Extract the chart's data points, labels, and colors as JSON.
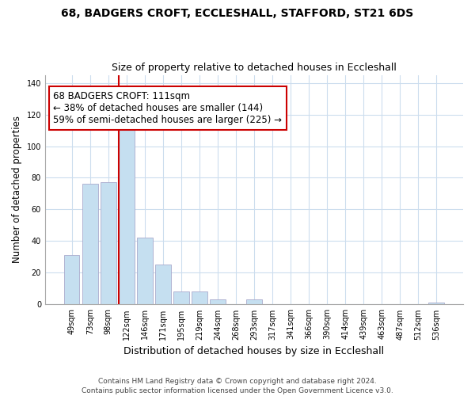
{
  "title": "68, BADGERS CROFT, ECCLESHALL, STAFFORD, ST21 6DS",
  "subtitle": "Size of property relative to detached houses in Eccleshall",
  "xlabel": "Distribution of detached houses by size in Eccleshall",
  "ylabel": "Number of detached properties",
  "bar_labels": [
    "49sqm",
    "73sqm",
    "98sqm",
    "122sqm",
    "146sqm",
    "171sqm",
    "195sqm",
    "219sqm",
    "244sqm",
    "268sqm",
    "293sqm",
    "317sqm",
    "341sqm",
    "366sqm",
    "390sqm",
    "414sqm",
    "439sqm",
    "463sqm",
    "487sqm",
    "512sqm",
    "536sqm"
  ],
  "bar_heights": [
    31,
    76,
    77,
    111,
    42,
    25,
    8,
    8,
    3,
    0,
    3,
    0,
    0,
    0,
    0,
    0,
    0,
    0,
    0,
    0,
    1
  ],
  "bar_color": "#c5dff0",
  "bar_edge_color": "#aaaacc",
  "background_color": "#ffffff",
  "grid_color": "#ccddee",
  "vline_color": "#cc0000",
  "annotation_line1": "68 BADGERS CROFT: 111sqm",
  "annotation_line2": "← 38% of detached houses are smaller (144)",
  "annotation_line3": "59% of semi-detached houses are larger (225) →",
  "annotation_box_color": "#ffffff",
  "annotation_box_edge": "#cc0000",
  "ylim": [
    0,
    145
  ],
  "yticks": [
    0,
    20,
    40,
    60,
    80,
    100,
    120,
    140
  ],
  "footnote1": "Contains HM Land Registry data © Crown copyright and database right 2024.",
  "footnote2": "Contains public sector information licensed under the Open Government Licence v3.0.",
  "title_fontsize": 10,
  "subtitle_fontsize": 9,
  "xlabel_fontsize": 9,
  "ylabel_fontsize": 8.5,
  "tick_fontsize": 7,
  "annot_fontsize": 8.5,
  "footnote_fontsize": 6.5
}
